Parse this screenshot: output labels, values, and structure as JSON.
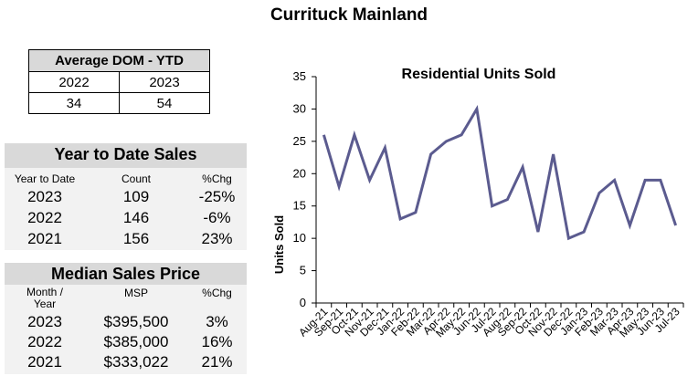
{
  "title": "Currituck Mainland",
  "dom": {
    "title": "Average DOM - YTD",
    "years": [
      "2022",
      "2023"
    ],
    "values": [
      "34",
      "54"
    ]
  },
  "ytd": {
    "title": "Year to Date Sales",
    "headers": [
      "Year to Date",
      "Count",
      "%Chg"
    ],
    "rows": [
      [
        "2023",
        "109",
        "-25%"
      ],
      [
        "2022",
        "146",
        "-6%"
      ],
      [
        "2021",
        "156",
        "23%"
      ]
    ]
  },
  "median": {
    "title": "Median Sales Price",
    "headers": [
      "Month /\nYear",
      "MSP",
      "%Chg"
    ],
    "rows": [
      [
        "2023",
        "$395,500",
        "3%"
      ],
      [
        "2022",
        "$385,000",
        "16%"
      ],
      [
        "2021",
        "$333,022",
        "21%"
      ]
    ]
  },
  "chart_data": {
    "type": "line",
    "title": "Residential Units Sold",
    "ylabel": "Units Sold",
    "xlabel": "",
    "ylim": [
      0,
      35
    ],
    "yticks": [
      0,
      5,
      10,
      15,
      20,
      25,
      30,
      35
    ],
    "categories": [
      "Aug-21",
      "Sep-21",
      "Oct-21",
      "Nov-21",
      "Dec-21",
      "Jan-22",
      "Feb-22",
      "Mar-22",
      "Apr-22",
      "May-22",
      "Jun-22",
      "Jul-22",
      "Aug-22",
      "Sep-22",
      "Oct-22",
      "Nov-22",
      "Dec-22",
      "Jan-23",
      "Feb-23",
      "Mar-23",
      "Apr-23",
      "May-23",
      "Jun-23",
      "Jul-23"
    ],
    "series": [
      {
        "name": "Residential Units Sold",
        "color": "#5b5b8f",
        "values": [
          26,
          18,
          26,
          19,
          24,
          13,
          14,
          23,
          25,
          26,
          30,
          15,
          16,
          21,
          11,
          23,
          10,
          11,
          17,
          19,
          12,
          19,
          19,
          12
        ]
      }
    ],
    "grid": false
  }
}
